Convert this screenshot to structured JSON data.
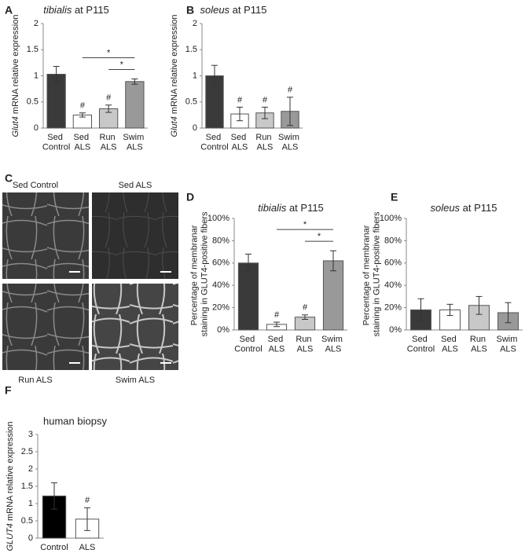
{
  "chart_data": [
    {
      "type": "bar",
      "panel": "A",
      "title": "tibialis at P115",
      "ylabel": "Glut4 mRNA relative expression",
      "categories": [
        "Sed Control",
        "Sed ALS",
        "Run ALS",
        "Swim ALS"
      ],
      "values": [
        1.03,
        0.25,
        0.37,
        0.89
      ],
      "errors": [
        0.15,
        0.04,
        0.07,
        0.05
      ],
      "colors": [
        "#3a3a3a",
        "#ffffff",
        "#c8c8c8",
        "#999999"
      ],
      "markers": [
        null,
        "#",
        "#",
        null
      ],
      "brackets": [
        {
          "from": "Sed ALS",
          "to": "Swim ALS",
          "label": "*"
        },
        {
          "from": "Run ALS",
          "to": "Swim ALS",
          "label": "*"
        }
      ],
      "ylim": [
        0,
        2
      ],
      "yticks": [
        0,
        0.5,
        1,
        1.5,
        2
      ]
    },
    {
      "type": "bar",
      "panel": "B",
      "title": "soleus at P115",
      "ylabel": "Glut4 mRNA relative expression",
      "categories": [
        "Sed Control",
        "Sed ALS",
        "Run ALS",
        "Swim ALS"
      ],
      "values": [
        1.0,
        0.27,
        0.29,
        0.32
      ],
      "errors": [
        0.2,
        0.13,
        0.11,
        0.27
      ],
      "colors": [
        "#3a3a3a",
        "#ffffff",
        "#c8c8c8",
        "#999999"
      ],
      "markers": [
        null,
        "#",
        "#",
        "#"
      ],
      "ylim": [
        0,
        2
      ],
      "yticks": [
        0,
        0.5,
        1,
        1.5,
        2
      ]
    },
    {
      "type": "bar",
      "panel": "D",
      "title": "tibialis at P115",
      "ylabel": "Percentage of membranar staining in GLUT4-positive fibers",
      "categories": [
        "Sed Control",
        "Sed ALS",
        "Run ALS",
        "Swim ALS"
      ],
      "values": [
        60,
        5,
        11.5,
        62
      ],
      "errors": [
        8,
        2,
        2,
        9
      ],
      "colors": [
        "#3a3a3a",
        "#ffffff",
        "#c8c8c8",
        "#999999"
      ],
      "markers": [
        null,
        "#",
        "#",
        null
      ],
      "brackets": [
        {
          "from": "Sed ALS",
          "to": "Swim ALS",
          "label": "*"
        },
        {
          "from": "Run ALS",
          "to": "Swim ALS",
          "label": "*"
        }
      ],
      "ylim": [
        0,
        100
      ],
      "yticks": [
        {
          "value": 0,
          "label": "0%"
        },
        {
          "value": 20,
          "label": "20%"
        },
        {
          "value": 40,
          "label": "40%"
        },
        {
          "value": 60,
          "label": "60%"
        },
        {
          "value": 80,
          "label": "80%"
        },
        {
          "value": 100,
          "label": "100%"
        }
      ]
    },
    {
      "type": "bar",
      "panel": "E",
      "title": "soleus at P115",
      "ylabel": "Percentage of membranar staining in GLUT4-positive  fibers",
      "categories": [
        "Sed Control",
        "Sed ALS",
        "Run ALS",
        "Swim ALS"
      ],
      "values": [
        18,
        18,
        22,
        15.5
      ],
      "errors": [
        10,
        5,
        8,
        9
      ],
      "colors": [
        "#3a3a3a",
        "#ffffff",
        "#c8c8c8",
        "#999999"
      ],
      "ylim": [
        0,
        100
      ],
      "yticks": [
        {
          "value": 0,
          "label": "0%"
        },
        {
          "value": 20,
          "label": "20%"
        },
        {
          "value": 40,
          "label": "40%"
        },
        {
          "value": 60,
          "label": "60%"
        },
        {
          "value": 80,
          "label": "80%"
        },
        {
          "value": 100,
          "label": "100%"
        }
      ]
    },
    {
      "type": "bar",
      "panel": "F",
      "title": "human biopsy",
      "ylabel": "GLUT4 mRNA relative expression",
      "categories": [
        "Control",
        "ALS"
      ],
      "values": [
        1.22,
        0.55
      ],
      "errors": [
        0.38,
        0.33
      ],
      "colors": [
        "#000000",
        "#ffffff"
      ],
      "markers": [
        null,
        "#"
      ],
      "ylim": [
        0,
        3
      ],
      "yticks": [
        0,
        0.5,
        1,
        1.5,
        2,
        2.5,
        3
      ]
    }
  ],
  "micrographs": {
    "panel": "C",
    "images": [
      "Sed Control",
      "Sed ALS",
      "Run ALS",
      "Swim ALS"
    ]
  }
}
